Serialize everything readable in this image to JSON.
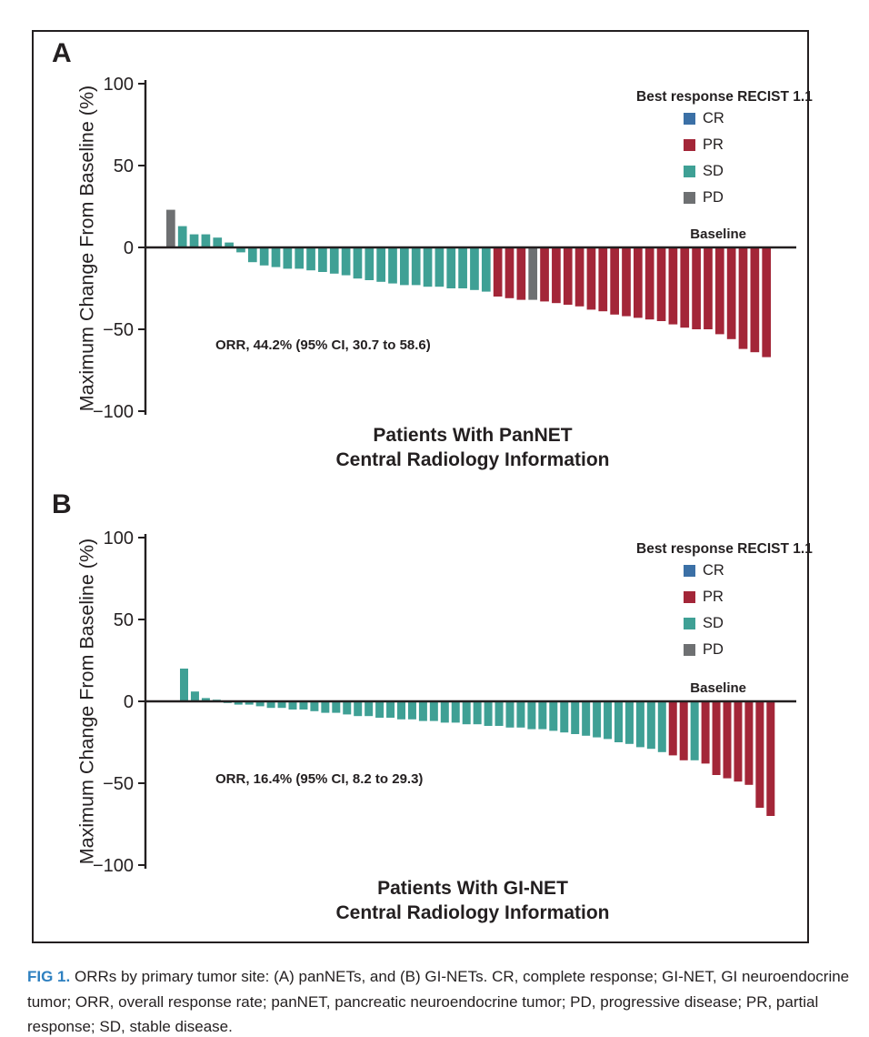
{
  "figure": {
    "caption_label": "FIG 1.",
    "caption_text": "ORRs by primary tumor site: (A) panNETs, and (B) GI-NETs. CR, complete response; GI-NET, GI neuroendocrine tumor; ORR, overall response rate; panNET, pancreatic neuroendocrine tumor; PD, progressive disease; PR, partial response; SD, stable disease."
  },
  "colors": {
    "CR": "#3B70A6",
    "PR": "#A32638",
    "SD": "#3FA095",
    "PD": "#6E7072",
    "caption_label": "#2E80C0",
    "ink": "#231F20"
  },
  "legend": {
    "title": "Best response RECIST 1.1",
    "entries": [
      {
        "key": "CR",
        "label": "CR"
      },
      {
        "key": "PR",
        "label": "PR"
      },
      {
        "key": "SD",
        "label": "SD"
      },
      {
        "key": "PD",
        "label": "PD"
      }
    ]
  },
  "chart_data": [
    {
      "type": "bar",
      "panel": "A",
      "title": "Patients With PanNET",
      "subtitle": "Central Radiology Information",
      "ylabel": "Maximum Change From Baseline (%)",
      "ylim": [
        -100,
        100
      ],
      "yticks": [
        100,
        50,
        0,
        -50,
        -100
      ],
      "grid": false,
      "legend_position": "top-right",
      "baseline_label": "Baseline",
      "annotation": "ORR, 44.2% (95% CI, 30.7 to 58.6)",
      "values": [
        23,
        13,
        8,
        8,
        6,
        3,
        -3,
        -9,
        -11,
        -12,
        -13,
        -13,
        -14,
        -15,
        -16,
        -17,
        -19,
        -20,
        -21,
        -22,
        -23,
        -23,
        -24,
        -24,
        -25,
        -25,
        -26,
        -27,
        -30,
        -31,
        -32,
        -32,
        -33,
        -34,
        -35,
        -36,
        -38,
        -39,
        -41,
        -42,
        -43,
        -44,
        -45,
        -47,
        -49,
        -50,
        -50,
        -53,
        -56,
        -62,
        -64,
        -67
      ],
      "responses": [
        "PD",
        "SD",
        "SD",
        "SD",
        "SD",
        "SD",
        "SD",
        "SD",
        "SD",
        "SD",
        "SD",
        "SD",
        "SD",
        "SD",
        "SD",
        "SD",
        "SD",
        "SD",
        "SD",
        "SD",
        "SD",
        "SD",
        "SD",
        "SD",
        "SD",
        "SD",
        "SD",
        "SD",
        "PR",
        "PR",
        "PR",
        "PD",
        "PR",
        "PR",
        "PR",
        "PR",
        "PR",
        "PR",
        "PR",
        "PR",
        "PR",
        "PR",
        "PR",
        "PR",
        "PR",
        "PR",
        "PR",
        "PR",
        "PR",
        "PR",
        "PR",
        "PR"
      ]
    },
    {
      "type": "bar",
      "panel": "B",
      "title": "Patients With GI-NET",
      "subtitle": "Central Radiology Information",
      "ylabel": "Maximum Change From Baseline (%)",
      "ylim": [
        -100,
        100
      ],
      "yticks": [
        100,
        50,
        0,
        -50,
        -100
      ],
      "grid": false,
      "legend_position": "top-right",
      "baseline_label": "Baseline",
      "annotation": "ORR, 16.4% (95% CI, 8.2 to 29.3)",
      "values": [
        20,
        6,
        2,
        1,
        -1,
        -2,
        -2,
        -3,
        -4,
        -4,
        -5,
        -5,
        -6,
        -7,
        -7,
        -8,
        -9,
        -9,
        -10,
        -10,
        -11,
        -11,
        -12,
        -12,
        -13,
        -13,
        -14,
        -14,
        -15,
        -15,
        -16,
        -16,
        -17,
        -17,
        -18,
        -19,
        -20,
        -21,
        -22,
        -23,
        -25,
        -26,
        -28,
        -29,
        -31,
        -33,
        -36,
        -36,
        -38,
        -45,
        -47,
        -49,
        -51,
        -65,
        -70
      ],
      "responses": [
        "SD",
        "SD",
        "SD",
        "SD",
        "SD",
        "SD",
        "SD",
        "SD",
        "SD",
        "SD",
        "SD",
        "SD",
        "SD",
        "SD",
        "SD",
        "SD",
        "SD",
        "SD",
        "SD",
        "SD",
        "SD",
        "SD",
        "SD",
        "SD",
        "SD",
        "SD",
        "SD",
        "SD",
        "SD",
        "SD",
        "SD",
        "SD",
        "SD",
        "SD",
        "SD",
        "SD",
        "SD",
        "SD",
        "SD",
        "SD",
        "SD",
        "SD",
        "SD",
        "SD",
        "SD",
        "PR",
        "PR",
        "SD",
        "PR",
        "PR",
        "PR",
        "PR",
        "PR",
        "PR",
        "PR"
      ]
    }
  ]
}
